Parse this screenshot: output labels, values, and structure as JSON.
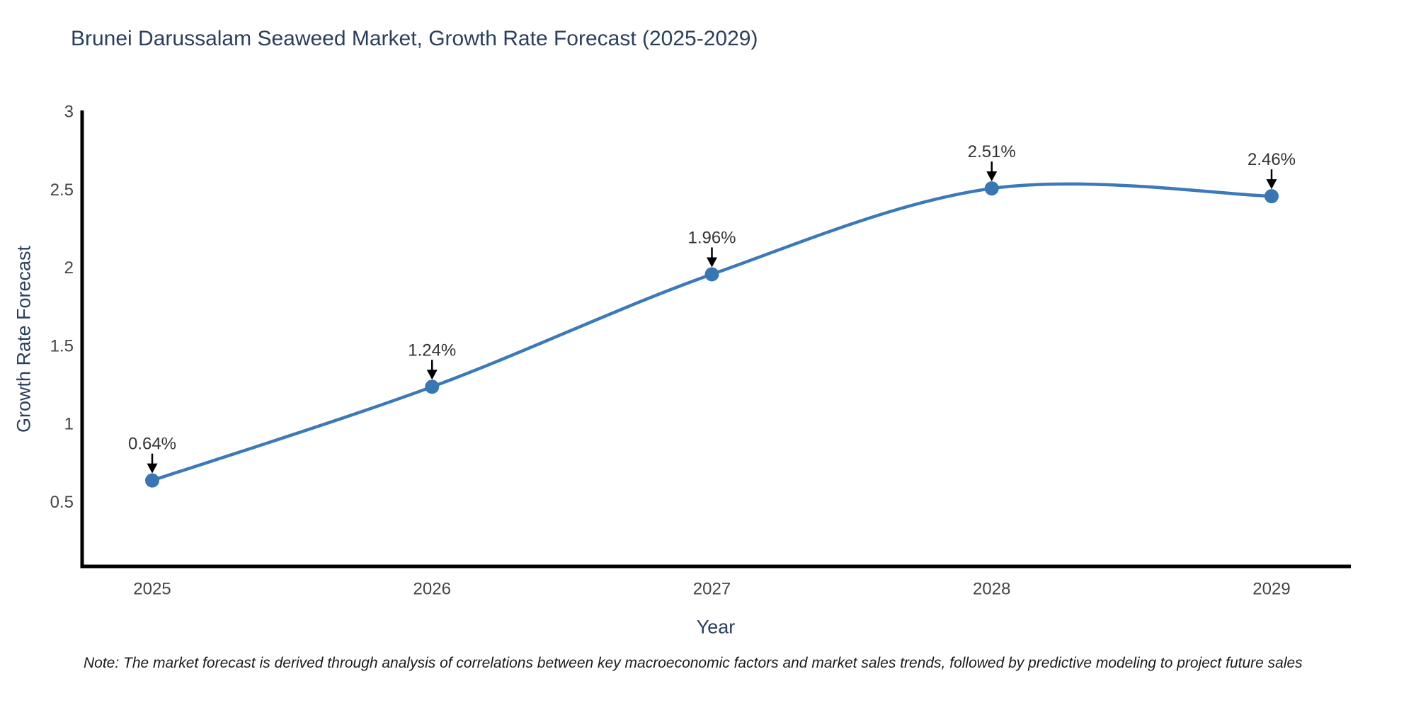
{
  "note": "Note: The market forecast is derived through analysis of correlations between key macroeconomic factors and market sales trends, followed by predictive modeling to project future sales",
  "colors": {
    "label": "#2a3f5f",
    "tick": "#444444",
    "annotation": "#333333",
    "note": "#1a1a1a"
  },
  "chart_data": {
    "type": "line",
    "line_shape": "spline",
    "title": "Brunei Darussalam Seaweed Market, Growth Rate Forecast (2025-2029)",
    "x": [
      "2025",
      "2026",
      "2027",
      "2028",
      "2029"
    ],
    "y": [
      0.64,
      1.24,
      1.96,
      2.51,
      2.46
    ],
    "point_labels": [
      "0.64%",
      "1.24%",
      "1.96%",
      "2.51%",
      "2.46%"
    ],
    "xlabel": "Year",
    "ylabel": "Growth Rate Forecast",
    "yticks": [
      0.5,
      1,
      1.5,
      2,
      2.5,
      3
    ],
    "ylim": [
      0.09,
      3.0
    ],
    "grid": false,
    "legend_position": "none",
    "markers": true,
    "annotations_arrows": true,
    "line_color": "#3b79b8",
    "marker_color": "#3876b4",
    "axis_color": "#000000",
    "arrow_color": "#000000"
  }
}
